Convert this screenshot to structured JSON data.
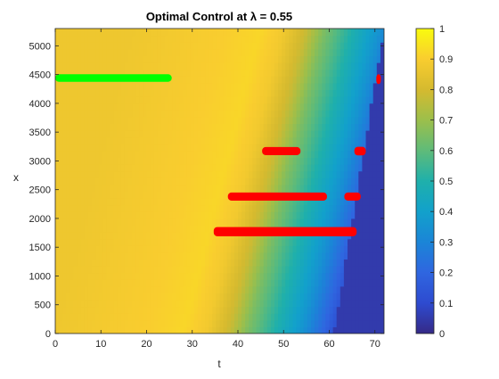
{
  "chart_data": {
    "type": "heatmap",
    "title": "Optimal Control at λ = 0.55",
    "xlabel": "t",
    "ylabel": "x",
    "xlim": [
      0,
      72
    ],
    "ylim": [
      0,
      5300
    ],
    "xticks": [
      0,
      10,
      20,
      30,
      40,
      50,
      60,
      70
    ],
    "yticks": [
      0,
      500,
      1000,
      1500,
      2000,
      2500,
      3000,
      3500,
      4000,
      4500,
      5000
    ],
    "colorbar": {
      "range": [
        0,
        1
      ],
      "ticks": [
        0,
        0.1,
        0.2,
        0.3,
        0.4,
        0.5,
        0.6,
        0.7,
        0.8,
        0.9,
        1
      ]
    },
    "colormap": "parula",
    "field_profile": {
      "description_axis": "value vs t at x=0 (band drifts to the right as x increases)",
      "t": [
        0,
        20,
        28,
        33,
        38,
        42,
        46,
        50,
        54,
        58,
        61,
        62
      ],
      "value": [
        0.87,
        0.9,
        0.92,
        0.88,
        0.78,
        0.65,
        0.55,
        0.45,
        0.35,
        0.22,
        0.12,
        0.05
      ],
      "band_shift_t_per_unit_x": 0.0032,
      "plateau_value": 0.05,
      "plateau_boundary": [
        [
          61,
          0
        ],
        [
          72,
          5300
        ]
      ]
    },
    "overlays": [
      {
        "color": "#00ff00",
        "t_start": 0,
        "t_end": 25.5,
        "x_center": 4440,
        "x_height": 130
      },
      {
        "color": "#ff0000",
        "t_start": 70.3,
        "t_end": 71.3,
        "x_center": 4420,
        "x_height": 170
      },
      {
        "color": "#ff0000",
        "t_start": 45.3,
        "t_end": 53.7,
        "x_center": 3170,
        "x_height": 140
      },
      {
        "color": "#ff0000",
        "t_start": 65.5,
        "t_end": 68,
        "x_center": 3170,
        "x_height": 150
      },
      {
        "color": "#ff0000",
        "t_start": 37.8,
        "t_end": 59.5,
        "x_center": 2380,
        "x_height": 140
      },
      {
        "color": "#ff0000",
        "t_start": 63.3,
        "t_end": 66.9,
        "x_center": 2380,
        "x_height": 140
      },
      {
        "color": "#ff0000",
        "t_start": 34.7,
        "t_end": 66,
        "x_center": 1770,
        "x_height": 160
      }
    ]
  }
}
